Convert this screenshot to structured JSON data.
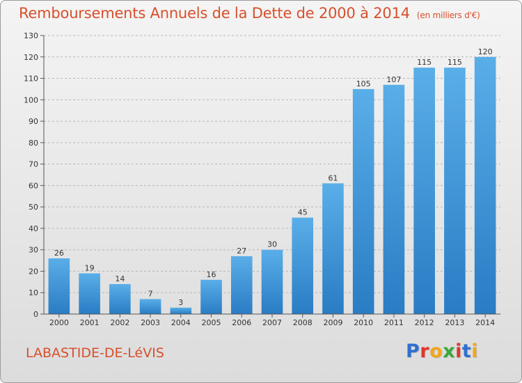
{
  "header": {
    "title": "Remboursements Annuels de la Dette de 2000 à 2014",
    "subtitle": "(en milliers d'€)"
  },
  "footer": {
    "commune": "LABASTIDE-DE-LéVIS",
    "logo_text": "Proxiti",
    "logo_colors": [
      "#2f6fd1",
      "#e0372b",
      "#f3a51b",
      "#3aa83b",
      "#e0372b",
      "#2f6fd1",
      "#f3a51b"
    ]
  },
  "colors": {
    "accent": "#d84f2b",
    "bar_light": "#5aaee8",
    "bar_dark": "#2a7cc4"
  },
  "chart_data": {
    "type": "bar",
    "title": "Remboursements Annuels de la Dette de 2000 à 2014",
    "subtitle": "(en milliers d'€)",
    "categories": [
      "2000",
      "2001",
      "2002",
      "2003",
      "2004",
      "2005",
      "2006",
      "2007",
      "2008",
      "2009",
      "2010",
      "2011",
      "2012",
      "2013",
      "2014"
    ],
    "values": [
      26,
      19,
      14,
      7,
      3,
      16,
      27,
      30,
      45,
      61,
      105,
      107,
      115,
      115,
      120
    ],
    "y_ticks": [
      "0",
      "10",
      "20",
      "30",
      "40",
      "50",
      "60",
      "70",
      "80",
      "90",
      "100",
      "110",
      "120",
      "130"
    ],
    "ylim": [
      0,
      130
    ],
    "grid": "horizontal-dashed",
    "legend": "none"
  }
}
